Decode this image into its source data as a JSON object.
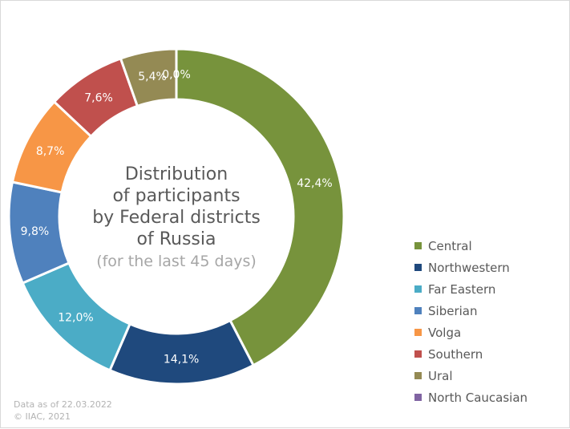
{
  "chart_data": {
    "type": "pie",
    "title": "Distribution of participants by Federal districts of Russia",
    "title_lines": [
      "Distribution",
      "of participants",
      "by Federal districts",
      "of Russia"
    ],
    "subtitle": "(for the last 45 days)",
    "categories": [
      "Central",
      "Northwestern",
      "Far Eastern",
      "Siberian",
      "Volga",
      "Southern",
      "Ural",
      "North Caucasian"
    ],
    "values": [
      42.4,
      14.1,
      12.0,
      9.8,
      8.7,
      7.6,
      5.4,
      0.0
    ],
    "labels": [
      "42,4%",
      "14,1%",
      "12,0%",
      "9,8%",
      "8,7%",
      "7,6%",
      "5,4%",
      "0,0%"
    ],
    "colors": [
      "#77933c",
      "#1f497d",
      "#4bacc6",
      "#4f81bd",
      "#f79646",
      "#c0504d",
      "#948a54",
      "#8064a2"
    ],
    "legend": "right",
    "donut": true
  },
  "footer": {
    "date": "Data as of 22.03.2022",
    "copyright": "© IIAC, 2021"
  }
}
